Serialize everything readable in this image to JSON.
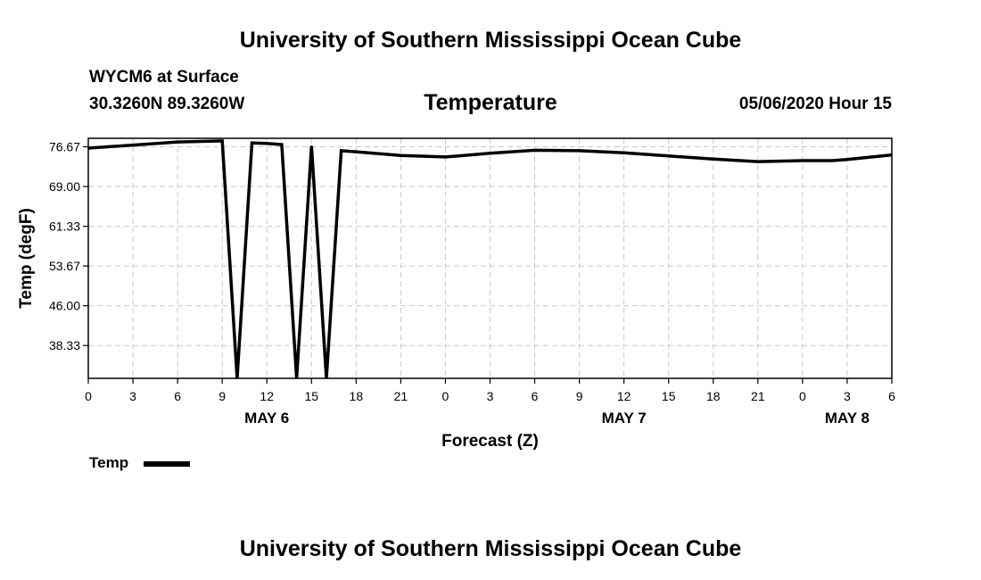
{
  "header": {
    "top_title": "University of Southern Mississippi Ocean Cube",
    "station": "WYCM6 at Surface",
    "coords": "30.3260N 89.3260W",
    "variable_title": "Temperature",
    "datetime": "05/06/2020 Hour 15",
    "bottom_title": "University of Southern Mississippi Ocean Cube"
  },
  "legend": {
    "label": "Temp"
  },
  "chart_data": {
    "type": "line",
    "xlabel": "Forecast (Z)",
    "ylabel": "Temp (degF)",
    "ylim": [
      32.0,
      78.3
    ],
    "xlim": [
      0,
      54
    ],
    "grid": true,
    "legend_position": "bottom-left",
    "yticks": [
      "76.67",
      "69.00",
      "61.33",
      "53.67",
      "46.00",
      "38.33"
    ],
    "ytick_values": [
      76.67,
      69.0,
      61.33,
      53.67,
      46.0,
      38.33
    ],
    "xtick_labels": [
      "0",
      "3",
      "6",
      "9",
      "12",
      "15",
      "18",
      "21",
      "0",
      "3",
      "6",
      "9",
      "12",
      "15",
      "18",
      "21",
      "0",
      "3",
      "6"
    ],
    "xtick_hours": [
      0,
      3,
      6,
      9,
      12,
      15,
      18,
      21,
      24,
      27,
      30,
      33,
      36,
      39,
      42,
      45,
      48,
      51,
      54
    ],
    "day_labels": [
      {
        "label": "MAY 6",
        "hour": 12
      },
      {
        "label": "MAY 7",
        "hour": 36
      },
      {
        "label": "MAY 8",
        "hour": 51
      }
    ],
    "series": [
      {
        "name": "Temp",
        "color": "#000000",
        "x": [
          0,
          3,
          6,
          9,
          10,
          11,
          12,
          13,
          14,
          15,
          16,
          17,
          18,
          21,
          24,
          27,
          30,
          33,
          36,
          39,
          42,
          45,
          48,
          50,
          51,
          54
        ],
        "y": [
          76.4,
          77.0,
          77.6,
          77.8,
          32.0,
          77.4,
          77.3,
          77.1,
          32.0,
          76.8,
          32.0,
          75.9,
          75.7,
          75.0,
          74.7,
          75.4,
          76.0,
          75.9,
          75.5,
          74.9,
          74.3,
          73.8,
          74.0,
          74.0,
          74.2,
          75.1
        ]
      }
    ]
  }
}
